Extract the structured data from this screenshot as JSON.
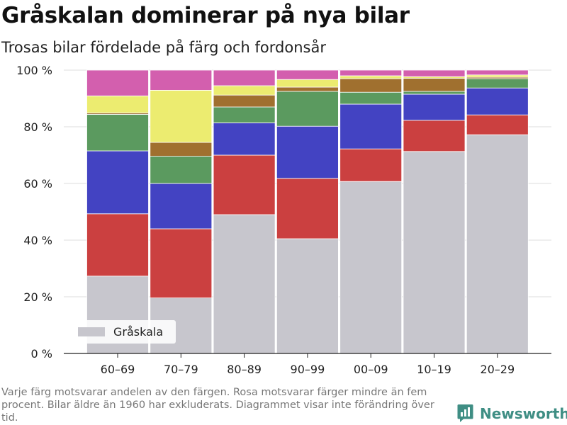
{
  "header": {
    "title": "Gråskalan dominerar på nya bilar",
    "subtitle": "Trosas bilar fördelade på färg och fordonsår"
  },
  "footnote": "Varje färg motsvarar andelen av den färgen. Rosa motsvarar färger mindre än fem procent. Bilar äldre än 1960 har exkluderats. Diagrammet visar inte förändring över tid.",
  "brand": {
    "name": "Newsworthy",
    "icon": "newsworthy-logo-icon"
  },
  "colors": {
    "grayscale": "#c7c6cd",
    "red": "#cb4040",
    "blue": "#4343c2",
    "green": "#5b9a5f",
    "brown": "#a0702f",
    "yellow": "#ecec70",
    "pink": "#d35fae",
    "axis": "#222222",
    "grid": "#dddddd"
  },
  "chart_data": {
    "type": "bar",
    "stacked": true,
    "categories": [
      "60–69",
      "70–79",
      "80–89",
      "90–99",
      "00–09",
      "10–19",
      "20–29"
    ],
    "ylim": [
      0,
      100
    ],
    "yticks": [
      0,
      20,
      40,
      60,
      80,
      100
    ],
    "ytick_labels": [
      "0 %",
      "20 %",
      "40 %",
      "60 %",
      "80 %",
      "100 %"
    ],
    "grid": true,
    "legend": {
      "position": "bottom-left",
      "entries": [
        "Gråskala"
      ]
    },
    "series": [
      {
        "name": "Gråskala",
        "color": "#c7c6cd",
        "values": [
          27.3,
          19.6,
          49.0,
          40.5,
          60.7,
          71.3,
          77.2
        ]
      },
      {
        "color": "#cb4040",
        "values": [
          22.0,
          24.4,
          21.0,
          21.3,
          11.5,
          11.0,
          7.0
        ]
      },
      {
        "color": "#4343c2",
        "values": [
          22.2,
          16.0,
          11.4,
          18.4,
          15.8,
          9.2,
          9.5
        ]
      },
      {
        "color": "#5b9a5f",
        "values": [
          12.9,
          9.6,
          5.6,
          12.3,
          4.2,
          1.0,
          3.3
        ]
      },
      {
        "color": "#a0702f",
        "values": [
          0.5,
          4.9,
          4.2,
          1.5,
          4.8,
          4.6,
          0.5
        ]
      },
      {
        "color": "#ecec70",
        "values": [
          6.0,
          18.4,
          3.3,
          2.7,
          1.0,
          0.6,
          0.8
        ]
      },
      {
        "color": "#d35fae",
        "values": [
          9.1,
          7.1,
          5.5,
          3.3,
          2.0,
          2.3,
          1.7
        ]
      }
    ]
  }
}
